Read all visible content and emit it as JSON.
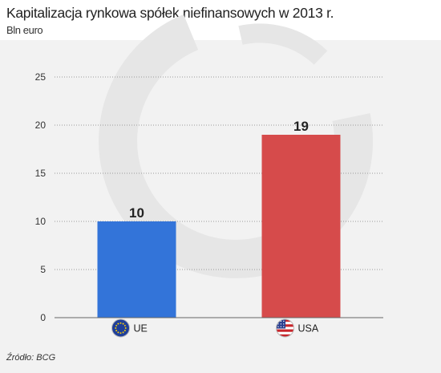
{
  "header": {
    "title": "Kapitalizacja rynkowa spółek niefinansowych w 2013 r.",
    "subtitle": "Bln euro"
  },
  "footer": {
    "source": "Źródło: BCG"
  },
  "icons": {
    "eu": "eu-flag-icon",
    "us": "us-flag-icon",
    "watermark": "logo-watermark"
  },
  "colors": {
    "eu_bar": "#3374d9",
    "usa_bar": "#d64b4b",
    "background": "#f2f2f2",
    "watermark": "#e6e6e6",
    "grid": "#999999"
  },
  "chart_data": {
    "type": "bar",
    "title": "Kapitalizacja rynkowa spółek niefinansowych w 2013 r.",
    "subtitle": "Bln euro",
    "categories": [
      "UE",
      "USA"
    ],
    "values": [
      10,
      19
    ],
    "data_labels": [
      "10",
      "19"
    ],
    "ylim": [
      0,
      25
    ],
    "yticks": [
      0,
      5,
      10,
      15,
      20,
      25
    ],
    "grid": true,
    "legend": "none"
  }
}
